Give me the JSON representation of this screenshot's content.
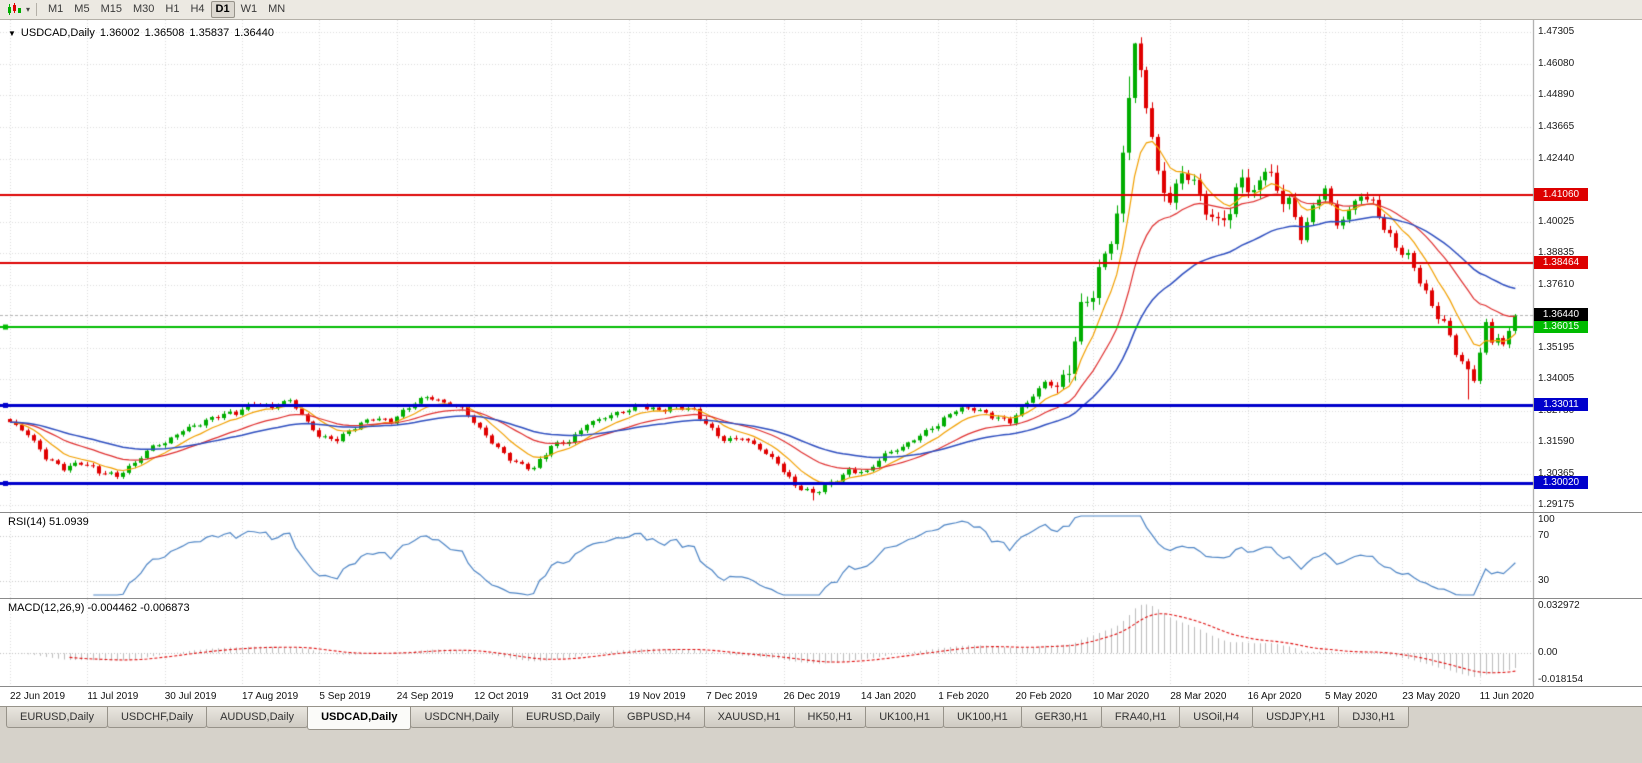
{
  "toolbar": {
    "timeframes": [
      "M1",
      "M5",
      "M15",
      "M30",
      "H1",
      "H4",
      "D1",
      "W1",
      "MN"
    ],
    "active_timeframe": "D1"
  },
  "chart": {
    "info": {
      "symbol": "USDCAD,Daily",
      "open": "1.36002",
      "high": "1.36508",
      "low": "1.35837",
      "close": "1.36440"
    },
    "price_axis": [
      "1.47305",
      "1.46080",
      "1.44890",
      "1.43665",
      "1.42440",
      "1.40025",
      "1.38835",
      "1.37610",
      "1.35195",
      "1.34005",
      "1.32780",
      "1.31590",
      "1.30365",
      "1.29175"
    ],
    "date_axis": [
      "22 Jun 2019",
      "11 Jul 2019",
      "30 Jul 2019",
      "17 Aug 2019",
      "5 Sep 2019",
      "24 Sep 2019",
      "12 Oct 2019",
      "31 Oct 2019",
      "19 Nov 2019",
      "7 Dec 2019",
      "26 Dec 2019",
      "14 Jan 2020",
      "1 Feb 2020",
      "20 Feb 2020",
      "10 Mar 2020",
      "28 Mar 2020",
      "16 Apr 2020",
      "5 May 2020",
      "23 May 2020",
      "11 Jun 2020"
    ],
    "current_price": {
      "price": 1.3644,
      "label": "1.36440",
      "bg": "#000000"
    },
    "colors": {
      "grid": "#dcdcdc",
      "up": "#00ad00",
      "down": "#e00000",
      "current_line": "#b4b4b4",
      "axis_sep": "#9a9a9a"
    }
  },
  "rsi": {
    "label": "RSI(14) 51.0939",
    "period": 14,
    "current": 51.0939,
    "color": "#4f86c6",
    "levels": [
      {
        "text": "100",
        "value": 100
      },
      {
        "text": "70",
        "value": 70
      },
      {
        "text": "30",
        "value": 30
      }
    ]
  },
  "macd": {
    "label": "MACD(12,26,9) -0.004462 -0.006873",
    "fast": 12,
    "slow": 26,
    "signal_period": 9,
    "current_main": -0.004462,
    "current_signal": -0.006873,
    "hist_color": "#bdbdbd",
    "signal_color": "#e01010",
    "axis": [
      {
        "text": "0.032972",
        "value": 0.032972
      },
      {
        "text": "0.00",
        "value": 0
      },
      {
        "text": "-0.018154",
        "value": -0.018154
      }
    ]
  },
  "tabs": {
    "active_index": 3,
    "items": [
      "EURUSD,Daily",
      "USDCHF,Daily",
      "AUDUSD,Daily",
      "USDCAD,Daily",
      "USDCNH,Daily",
      "EURUSD,Daily",
      "GBPUSD,H4",
      "XAUUSD,H1",
      "HK50,H1",
      "UK100,H1",
      "UK100,H1",
      "GER30,H1",
      "FRA40,H1",
      "USOil,H4",
      "USDJPY,H1",
      "DJ30,H1"
    ]
  },
  "chart_data": {
    "type": "candlestick",
    "symbol": "USDCAD",
    "timeframe": "Daily",
    "candle_count": 254,
    "last_close": 1.3644,
    "ohlc_current": {
      "open": 1.36002,
      "high": 1.36508,
      "low": 1.35837,
      "close": 1.3644
    },
    "close_anchors": [
      [
        0,
        1.3235
      ],
      [
        3,
        1.3185
      ],
      [
        6,
        1.31
      ],
      [
        9,
        1.3062
      ],
      [
        12,
        1.3078
      ],
      [
        15,
        1.3042
      ],
      [
        18,
        1.3032
      ],
      [
        21,
        1.3082
      ],
      [
        24,
        1.314
      ],
      [
        26,
        1.3152
      ],
      [
        29,
        1.3208
      ],
      [
        32,
        1.3232
      ],
      [
        35,
        1.3256
      ],
      [
        38,
        1.327
      ],
      [
        41,
        1.3312
      ],
      [
        44,
        1.3292
      ],
      [
        47,
        1.3315
      ],
      [
        50,
        1.3235
      ],
      [
        52,
        1.3185
      ],
      [
        55,
        1.3168
      ],
      [
        58,
        1.3212
      ],
      [
        61,
        1.3252
      ],
      [
        64,
        1.3242
      ],
      [
        67,
        1.3292
      ],
      [
        70,
        1.333
      ],
      [
        73,
        1.3312
      ],
      [
        76,
        1.3292
      ],
      [
        79,
        1.3205
      ],
      [
        82,
        1.3132
      ],
      [
        85,
        1.3082
      ],
      [
        88,
        1.3058
      ],
      [
        91,
        1.314
      ],
      [
        94,
        1.3162
      ],
      [
        97,
        1.3232
      ],
      [
        100,
        1.3252
      ],
      [
        103,
        1.3272
      ],
      [
        106,
        1.3302
      ],
      [
        109,
        1.3282
      ],
      [
        112,
        1.3292
      ],
      [
        115,
        1.3278
      ],
      [
        117,
        1.3232
      ],
      [
        120,
        1.3168
      ],
      [
        123,
        1.3172
      ],
      [
        126,
        1.3132
      ],
      [
        129,
        1.3082
      ],
      [
        132,
        1.2992
      ],
      [
        135,
        1.2958
      ],
      [
        138,
        1.3002
      ],
      [
        141,
        1.3052
      ],
      [
        144,
        1.3042
      ],
      [
        147,
        1.3108
      ],
      [
        150,
        1.3142
      ],
      [
        153,
        1.3188
      ],
      [
        156,
        1.3222
      ],
      [
        159,
        1.3282
      ],
      [
        162,
        1.3292
      ],
      [
        165,
        1.3258
      ],
      [
        168,
        1.3232
      ],
      [
        171,
        1.3312
      ],
      [
        174,
        1.3392
      ],
      [
        176,
        1.3372
      ],
      [
        178,
        1.3422
      ],
      [
        180,
        1.3662
      ],
      [
        182,
        1.3732
      ],
      [
        184,
        1.3892
      ],
      [
        186,
        1.4022
      ],
      [
        188,
        1.4502
      ],
      [
        189,
        1.4662
      ],
      [
        191,
        1.4452
      ],
      [
        193,
        1.4182
      ],
      [
        195,
        1.4092
      ],
      [
        197,
        1.4202
      ],
      [
        199,
        1.4152
      ],
      [
        201,
        1.4032
      ],
      [
        203,
        1.3992
      ],
      [
        205,
        1.4052
      ],
      [
        207,
        1.4192
      ],
      [
        209,
        1.4102
      ],
      [
        211,
        1.4212
      ],
      [
        213,
        1.4102
      ],
      [
        215,
        1.4082
      ],
      [
        217,
        1.3952
      ],
      [
        219,
        1.4062
      ],
      [
        221,
        1.4132
      ],
      [
        223,
        1.3982
      ],
      [
        225,
        1.4042
      ],
      [
        227,
        1.4112
      ],
      [
        229,
        1.4082
      ],
      [
        231,
        1.3982
      ],
      [
        233,
        1.3902
      ],
      [
        235,
        1.3862
      ],
      [
        237,
        1.3782
      ],
      [
        239,
        1.3682
      ],
      [
        241,
        1.3622
      ],
      [
        243,
        1.3502
      ],
      [
        245,
        1.3422
      ],
      [
        246,
        1.3392
      ],
      [
        248,
        1.3612
      ],
      [
        249,
        1.3542
      ],
      [
        250,
        1.3572
      ],
      [
        251,
        1.3538
      ],
      [
        252,
        1.3582
      ],
      [
        253,
        1.3644
      ]
    ],
    "wick_overrides": [
      [
        189,
        "high",
        1.4689
      ],
      [
        188,
        "high",
        1.456
      ],
      [
        245,
        "low",
        1.3322
      ],
      [
        135,
        "low",
        1.2935
      ]
    ],
    "moving_averages": [
      {
        "name": "fast-ma",
        "type": "ema",
        "period": 8,
        "color": "#f2a000"
      },
      {
        "name": "medium-ma",
        "type": "ema",
        "period": 20,
        "color": "#e03030"
      },
      {
        "name": "slow-ma",
        "type": "ema",
        "period": 40,
        "color": "#2f4fc0"
      }
    ],
    "hlines": [
      {
        "price": 1.4106,
        "label": "1.41060",
        "color": "#dd0000",
        "width": 2,
        "handles": false
      },
      {
        "price": 1.38464,
        "label": "1.38464",
        "color": "#dd0000",
        "width": 2,
        "handles": false
      },
      {
        "price": 1.36015,
        "label": "1.36015",
        "color": "#00bb00",
        "width": 2,
        "handles": true
      },
      {
        "price": 1.33011,
        "label": "1.33011",
        "color": "#0000cc",
        "width": 3,
        "handles": true
      },
      {
        "price": 1.3002,
        "label": "1.30020",
        "color": "#0000cc",
        "width": 3,
        "handles": true
      }
    ]
  }
}
